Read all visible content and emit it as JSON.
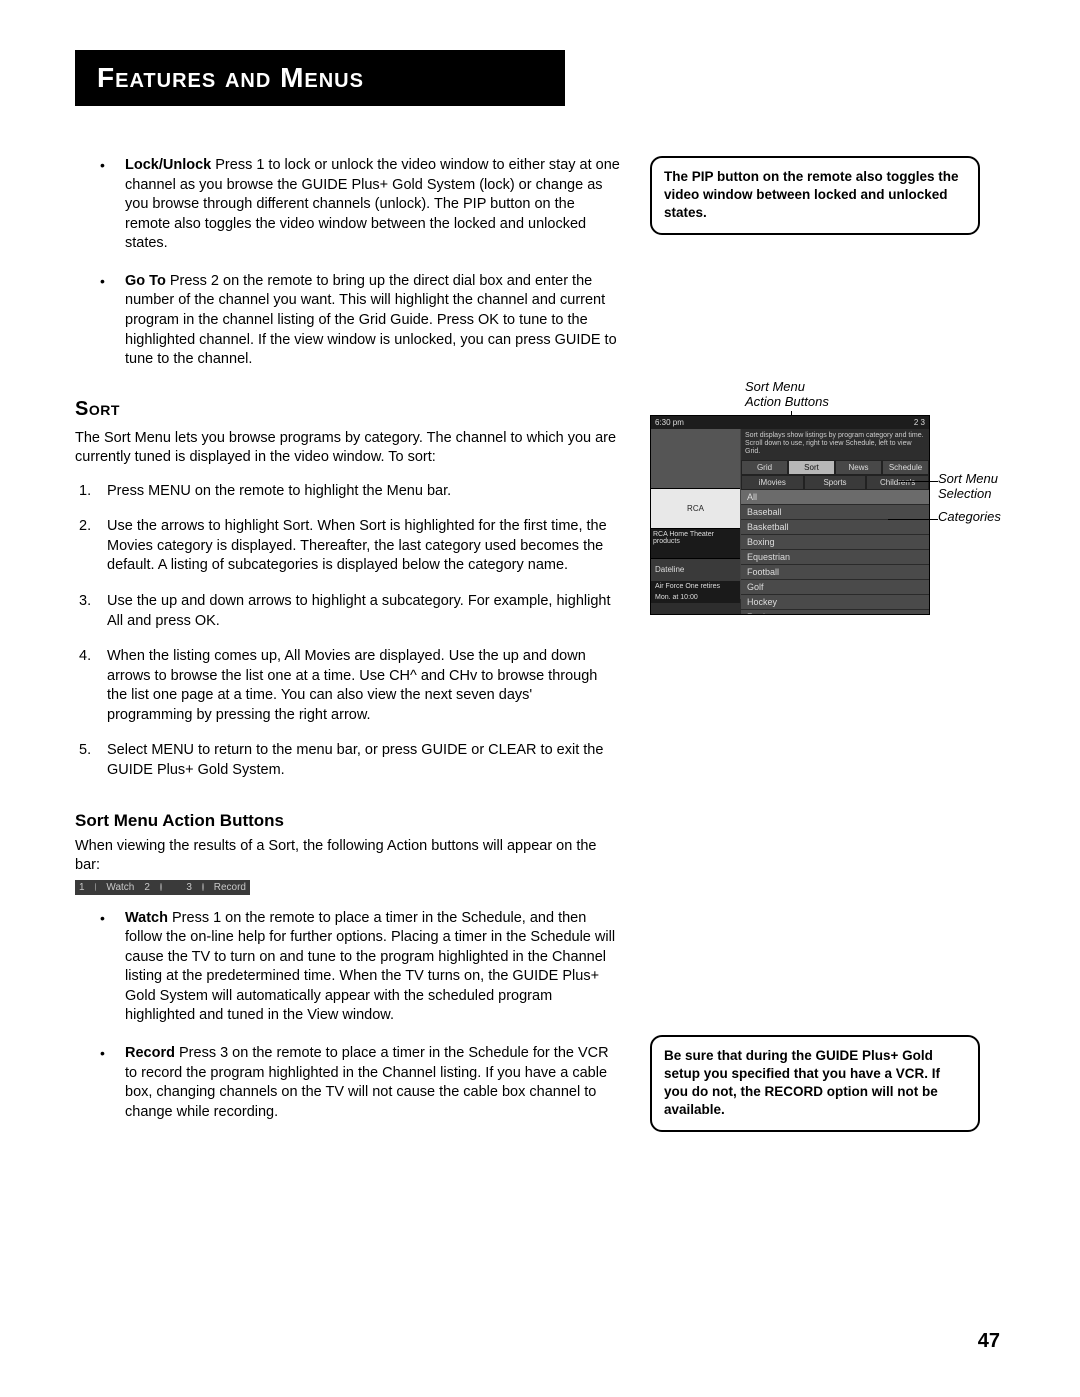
{
  "header": {
    "title": "Features and Menus"
  },
  "bullets_top": [
    {
      "label": "Lock/Unlock",
      "text": "Press 1 to lock or unlock the video window to either stay at one channel as you browse the GUIDE Plus+ Gold System (lock) or change as you browse through different channels (unlock). The PIP button on the remote also toggles the video window between the locked and unlocked states."
    },
    {
      "label": "Go To",
      "text": "Press 2 on the remote to bring up the direct dial box and enter the number of the channel you want. This will highlight the channel and current program in the channel listing of the Grid Guide. Press OK to tune to the highlighted channel. If the view window is unlocked, you can press GUIDE to tune to the channel."
    }
  ],
  "sort": {
    "title": "Sort",
    "intro": "The Sort Menu lets you browse programs by category. The channel to which you are currently tuned is displayed in the video window. To sort:",
    "steps": [
      "Press MENU on the remote to highlight the Menu bar.",
      "Use the arrows to highlight Sort. When Sort is highlighted for the first time, the Movies category is displayed. Thereafter, the last category used becomes the default. A listing of subcategories is displayed below the category name.",
      "Use the up and down arrows to highlight a subcategory. For example, highlight All and press OK.",
      "When the listing comes up, All Movies are displayed.  Use the up and down arrows to browse the list one at a time. Use CH^ and CHv to browse through the list one page at a time. You can also view the next seven days' programming by pressing the right arrow.",
      "Select MENU to return to the menu bar, or press GUIDE or CLEAR to exit the GUIDE Plus+ Gold System."
    ]
  },
  "action_buttons": {
    "heading": "Sort Menu Action Buttons",
    "intro": "When viewing the results of a Sort, the following Action buttons will appear on the bar:",
    "bar": {
      "b1": "1",
      "l1": "Watch",
      "b2": "2",
      "b3": "3",
      "l3": "Record"
    },
    "items": [
      {
        "label": "Watch",
        "text": "Press 1 on the remote to place a timer in the Schedule, and then follow the on-line help for further options. Placing a timer in the Schedule will cause the TV to turn on and tune to the program highlighted in the Channel listing at the predetermined time. When the TV turns on, the GUIDE Plus+ Gold System will automatically appear with the scheduled program highlighted and tuned in the View window."
      },
      {
        "label": "Record",
        "text": "Press 3 on the remote to place a timer in the Schedule for the VCR to record the program highlighted in the Channel listing. If you have a cable box, changing channels on the TV will not cause the cable box channel to change while recording."
      }
    ]
  },
  "notes": {
    "top": "The PIP button on the remote also toggles the video window between locked and unlocked states.",
    "bottom": "Be sure that during the GUIDE Plus+ Gold setup you specified that you have a VCR. If you do not, the RECORD option will not be available."
  },
  "diagram": {
    "top_label_1": "Sort Menu",
    "top_label_2": "Action Buttons",
    "side_label_1a": "Sort Menu",
    "side_label_1b": "Selection",
    "side_label_2": "Categories",
    "time": "6:30 pm",
    "btns": "2      3",
    "hint": "Sort displays show listings by program category and time. Scroll down to use, right to view Schedule, left to view Grid.",
    "tabs": [
      "Grid",
      "Sort",
      "News",
      "Schedule"
    ],
    "selected_tab": 1,
    "cats": [
      "iMovies",
      "Sports",
      "Children's"
    ],
    "logo": "RCA",
    "promo": "RCA Home Theater products",
    "dateline": "Dateline",
    "afo": "Air Force One retires",
    "monline": "Mon. at 10:00",
    "list": [
      "All",
      "Baseball",
      "Basketball",
      "Boxing",
      "Equestrian",
      "Football",
      "Golf",
      "Hockey",
      "Racing"
    ]
  },
  "page_number": "47",
  "colors": {
    "black": "#000000",
    "white": "#ffffff",
    "bar_bg": "#3a3a3a",
    "screen_bg": "#2d2d2d"
  }
}
